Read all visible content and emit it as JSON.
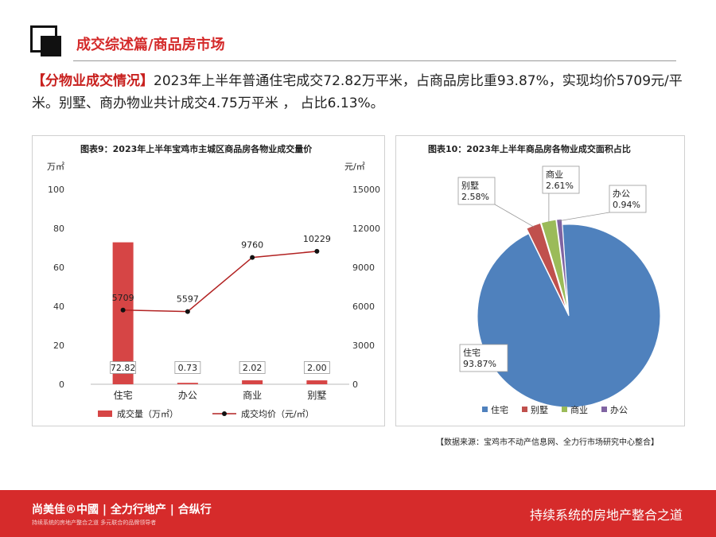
{
  "header": {
    "title": "成交综述篇/商品房市场"
  },
  "summary": {
    "tag": "【分物业成交情况】",
    "text": "2023年上半年普通住宅成交72.82万平米，占商品房比重93.87%，实现均价5709元/平米。别墅、商办物业共计成交4.75万平米 ， 占比6.13%。"
  },
  "chart_data": [
    {
      "type": "bar+line",
      "title": "图表9：2023年上半年宝鸡市主城区商品房各物业成交量价",
      "categories": [
        "住宅",
        "办公",
        "商业",
        "别墅"
      ],
      "y_left_unit": "万㎡",
      "y_right_unit": "元/㎡",
      "y_left_ticks": [
        "0",
        "20",
        "40",
        "60",
        "80",
        "100"
      ],
      "y_right_ticks": [
        "0",
        "3000",
        "6000",
        "9000",
        "12000",
        "15000"
      ],
      "ylim_left": [
        0,
        100
      ],
      "ylim_right": [
        0,
        15000
      ],
      "bar_labels": [
        "72.82",
        "0.73",
        "2.02",
        "2.00"
      ],
      "line_labels": [
        "5709",
        "5597",
        "9760",
        "10229"
      ],
      "series": [
        {
          "name": "成交量（万㎡）",
          "type": "bar",
          "axis": "left",
          "values": [
            72.82,
            0.73,
            2.02,
            2.0
          ],
          "color": "#d64545"
        },
        {
          "name": "成交均价（元/㎡）",
          "type": "line",
          "axis": "right",
          "values": [
            5709,
            5597,
            9760,
            10229
          ],
          "color": "#b22222"
        }
      ],
      "legend_position": "bottom"
    },
    {
      "type": "pie",
      "title": "图表10：2023年上半年商品房各物业成交面积占比",
      "labels": [
        "住宅",
        "别墅",
        "商业",
        "办公"
      ],
      "values": [
        93.87,
        2.58,
        2.61,
        0.94
      ],
      "value_labels": [
        "93.87%",
        "2.58%",
        "2.61%",
        "0.94%"
      ],
      "colors": [
        "#4f81bd",
        "#c0504d",
        "#9bbb59",
        "#8064a2"
      ],
      "legend_position": "bottom"
    }
  ],
  "source": "【数据来源：宝鸡市不动产信息网、全力行市场研究中心整合】",
  "footer": {
    "brand": "尚美佳®中國 | 全力行地产 | 合纵行",
    "sub": "持续系统的房地产整合之道   多元联合的品牌领导者",
    "slogan": "持续系统的房地产整合之道"
  }
}
